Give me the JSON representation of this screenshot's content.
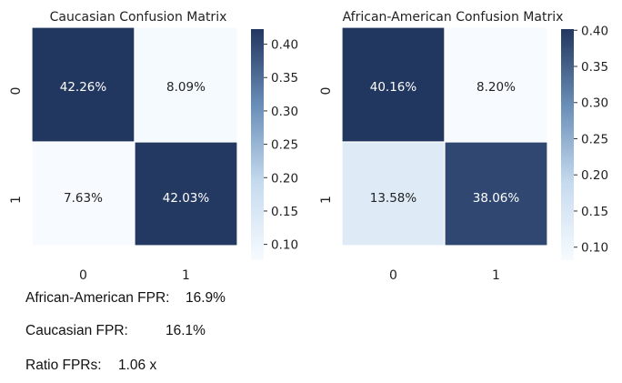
{
  "chart_data": [
    {
      "type": "heatmap",
      "title": "Caucasian Confusion Matrix",
      "row_labels": [
        "0",
        "1"
      ],
      "col_labels": [
        "0",
        "1"
      ],
      "values": [
        [
          0.4226,
          0.0809
        ],
        [
          0.0763,
          0.4203
        ]
      ],
      "cell_labels": [
        [
          "42.26%",
          "8.09%"
        ],
        [
          "7.63%",
          "42.03%"
        ]
      ],
      "colorbar": {
        "ticks": [
          0.1,
          0.15,
          0.2,
          0.25,
          0.3,
          0.35,
          0.4
        ],
        "tick_labels": [
          "0.10",
          "0.15",
          "0.20",
          "0.25",
          "0.30",
          "0.35",
          "0.40"
        ],
        "range": [
          0.0763,
          0.4226
        ]
      },
      "colormap": [
        "#f7fbff",
        "#c6dbef",
        "#6a8fb8",
        "#22375f"
      ]
    },
    {
      "type": "heatmap",
      "title": "African-American Confusion Matrix",
      "row_labels": [
        "0",
        "1"
      ],
      "col_labels": [
        "0",
        "1"
      ],
      "values": [
        [
          0.4016,
          0.082
        ],
        [
          0.1358,
          0.3806
        ]
      ],
      "cell_labels": [
        [
          "40.16%",
          "8.20%"
        ],
        [
          "13.58%",
          "38.06%"
        ]
      ],
      "colorbar": {
        "ticks": [
          0.1,
          0.15,
          0.2,
          0.25,
          0.3,
          0.35,
          0.4
        ],
        "tick_labels": [
          "0.10",
          "0.15",
          "0.20",
          "0.25",
          "0.30",
          "0.35",
          "0.40"
        ],
        "range": [
          0.082,
          0.4016
        ]
      },
      "colormap": [
        "#f7fbff",
        "#c6dbef",
        "#6a8fb8",
        "#22375f"
      ]
    }
  ],
  "stats": {
    "aa_fpr_label": "African-American FPR:",
    "aa_fpr_value": "16.9%",
    "ca_fpr_label": "Caucasian FPR:",
    "ca_fpr_value": "16.1%",
    "ratio_label": "Ratio FPRs:",
    "ratio_value": "1.06 x"
  }
}
